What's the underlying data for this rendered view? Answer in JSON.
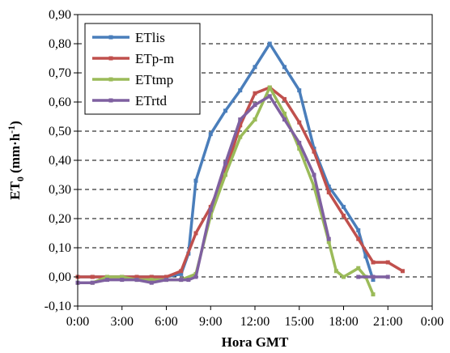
{
  "chart_data": {
    "type": "line",
    "xlabel": "Hora GMT",
    "ylabel": "ET",
    "ylabel_sub": "0",
    "ylabel_unit": " (mm·h",
    "ylabel_sup": "-1",
    "ylabel_close": ")",
    "xlim": [
      0,
      24
    ],
    "ylim": [
      -0.1,
      0.9
    ],
    "x_ticks": [
      0,
      3,
      6,
      9,
      12,
      15,
      18,
      21,
      24
    ],
    "x_tick_labels": [
      "0:00",
      "3:00",
      "6:00",
      "9:00",
      "12:00",
      "15:00",
      "18:00",
      "21:00",
      "0:00"
    ],
    "y_ticks": [
      -0.1,
      0,
      0.1,
      0.2,
      0.3,
      0.4,
      0.5,
      0.6,
      0.7,
      0.8,
      0.9
    ],
    "y_tick_labels": [
      "-0,10",
      "0,00",
      "0,10",
      "0,20",
      "0,30",
      "0,40",
      "0,50",
      "0,60",
      "0,70",
      "0,80",
      "0,90"
    ],
    "grid": "horizontal-dashed",
    "legend_position": "top-left",
    "series": [
      {
        "name": "ETlis",
        "color": "#4a7ebb",
        "x": [
          0,
          1,
          2,
          3,
          4,
          5,
          6,
          7,
          7.5,
          8,
          9,
          10,
          11,
          12,
          13,
          14,
          15,
          16,
          17,
          18,
          19,
          19.5,
          20
        ],
        "y": [
          0,
          0,
          0,
          0,
          0,
          0,
          0,
          0.01,
          0.08,
          0.33,
          0.49,
          0.57,
          0.64,
          0.72,
          0.8,
          0.72,
          0.64,
          0.44,
          0.31,
          0.24,
          0.16,
          0.07,
          -0.01
        ]
      },
      {
        "name": "ETp-m",
        "color": "#c0504d",
        "x": [
          0,
          1,
          2,
          3,
          4,
          5,
          6,
          7,
          8,
          9,
          10,
          11,
          12,
          13,
          14,
          15,
          16,
          17,
          18,
          19,
          20,
          21,
          22
        ],
        "y": [
          0,
          0,
          0,
          0,
          0,
          0,
          0,
          0.02,
          0.15,
          0.24,
          0.36,
          0.52,
          0.63,
          0.65,
          0.61,
          0.53,
          0.43,
          0.29,
          0.21,
          0.13,
          0.05,
          0.05,
          0.02
        ]
      },
      {
        "name": "ETtmp",
        "color": "#9bbb59",
        "x": [
          0,
          1,
          2,
          3,
          4,
          5,
          6,
          7,
          8,
          9,
          10,
          11,
          12,
          13,
          14,
          15,
          16,
          17,
          17.5,
          18,
          19,
          19.5,
          20
        ],
        "y": [
          -0.02,
          -0.02,
          0,
          0,
          -0.01,
          -0.01,
          -0.01,
          -0.01,
          0.01,
          0.21,
          0.35,
          0.48,
          0.54,
          0.65,
          0.56,
          0.44,
          0.31,
          0.12,
          0.02,
          0.0,
          0.03,
          0.0,
          -0.06
        ]
      },
      {
        "name": "ETrtd",
        "color": "#7f60a0",
        "x": [
          0,
          1,
          2,
          3,
          4,
          5,
          6,
          7,
          7.5,
          8,
          9,
          10,
          11,
          12,
          13,
          14,
          15,
          16,
          17
        ],
        "y": [
          -0.02,
          -0.02,
          -0.01,
          -0.01,
          -0.01,
          -0.02,
          -0.01,
          -0.01,
          -0.01,
          0,
          0.23,
          0.39,
          0.54,
          0.59,
          0.62,
          0.54,
          0.46,
          0.35,
          0.13
        ]
      },
      {
        "name": "",
        "color": "#7f60a0",
        "legend": false,
        "x": [
          19,
          20,
          21
        ],
        "y": [
          0,
          0,
          0
        ]
      }
    ]
  }
}
